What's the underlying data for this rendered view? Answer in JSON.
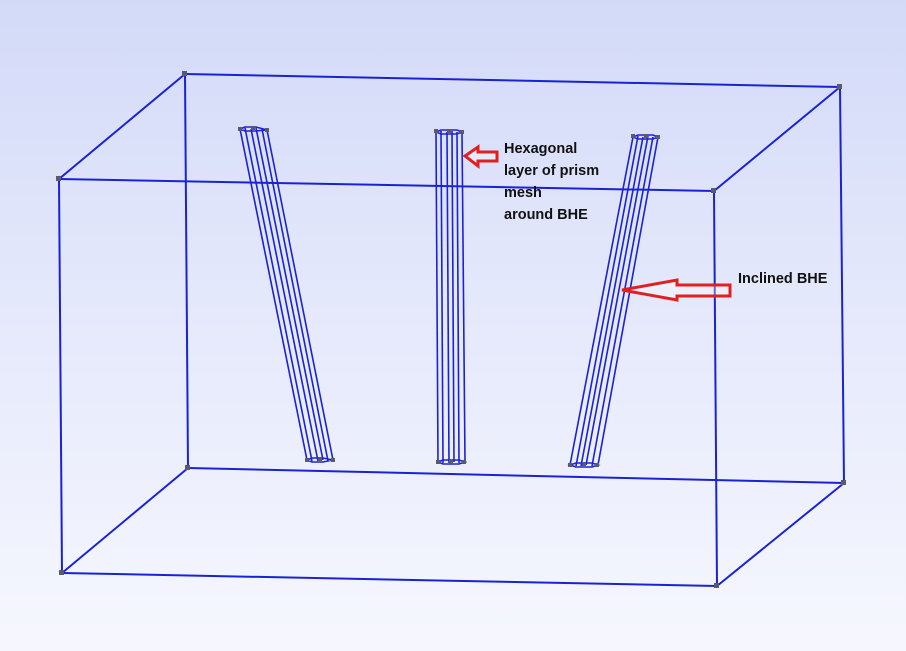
{
  "annotations": {
    "hexagonal_label": [
      "Hexagonal",
      "layer of prism",
      "mesh",
      "around BHE"
    ],
    "inclined_label": "Inclined BHE"
  },
  "colors": {
    "background_top": "#d3daf8",
    "background_bottom": "#f6f7fe",
    "wireframe": "#1a22d6",
    "vertex": "#5a5a6a",
    "arrow": "#e02020"
  },
  "components": [
    "box-domain-wireframe",
    "bhe-left",
    "bhe-center",
    "bhe-right-inclined"
  ]
}
